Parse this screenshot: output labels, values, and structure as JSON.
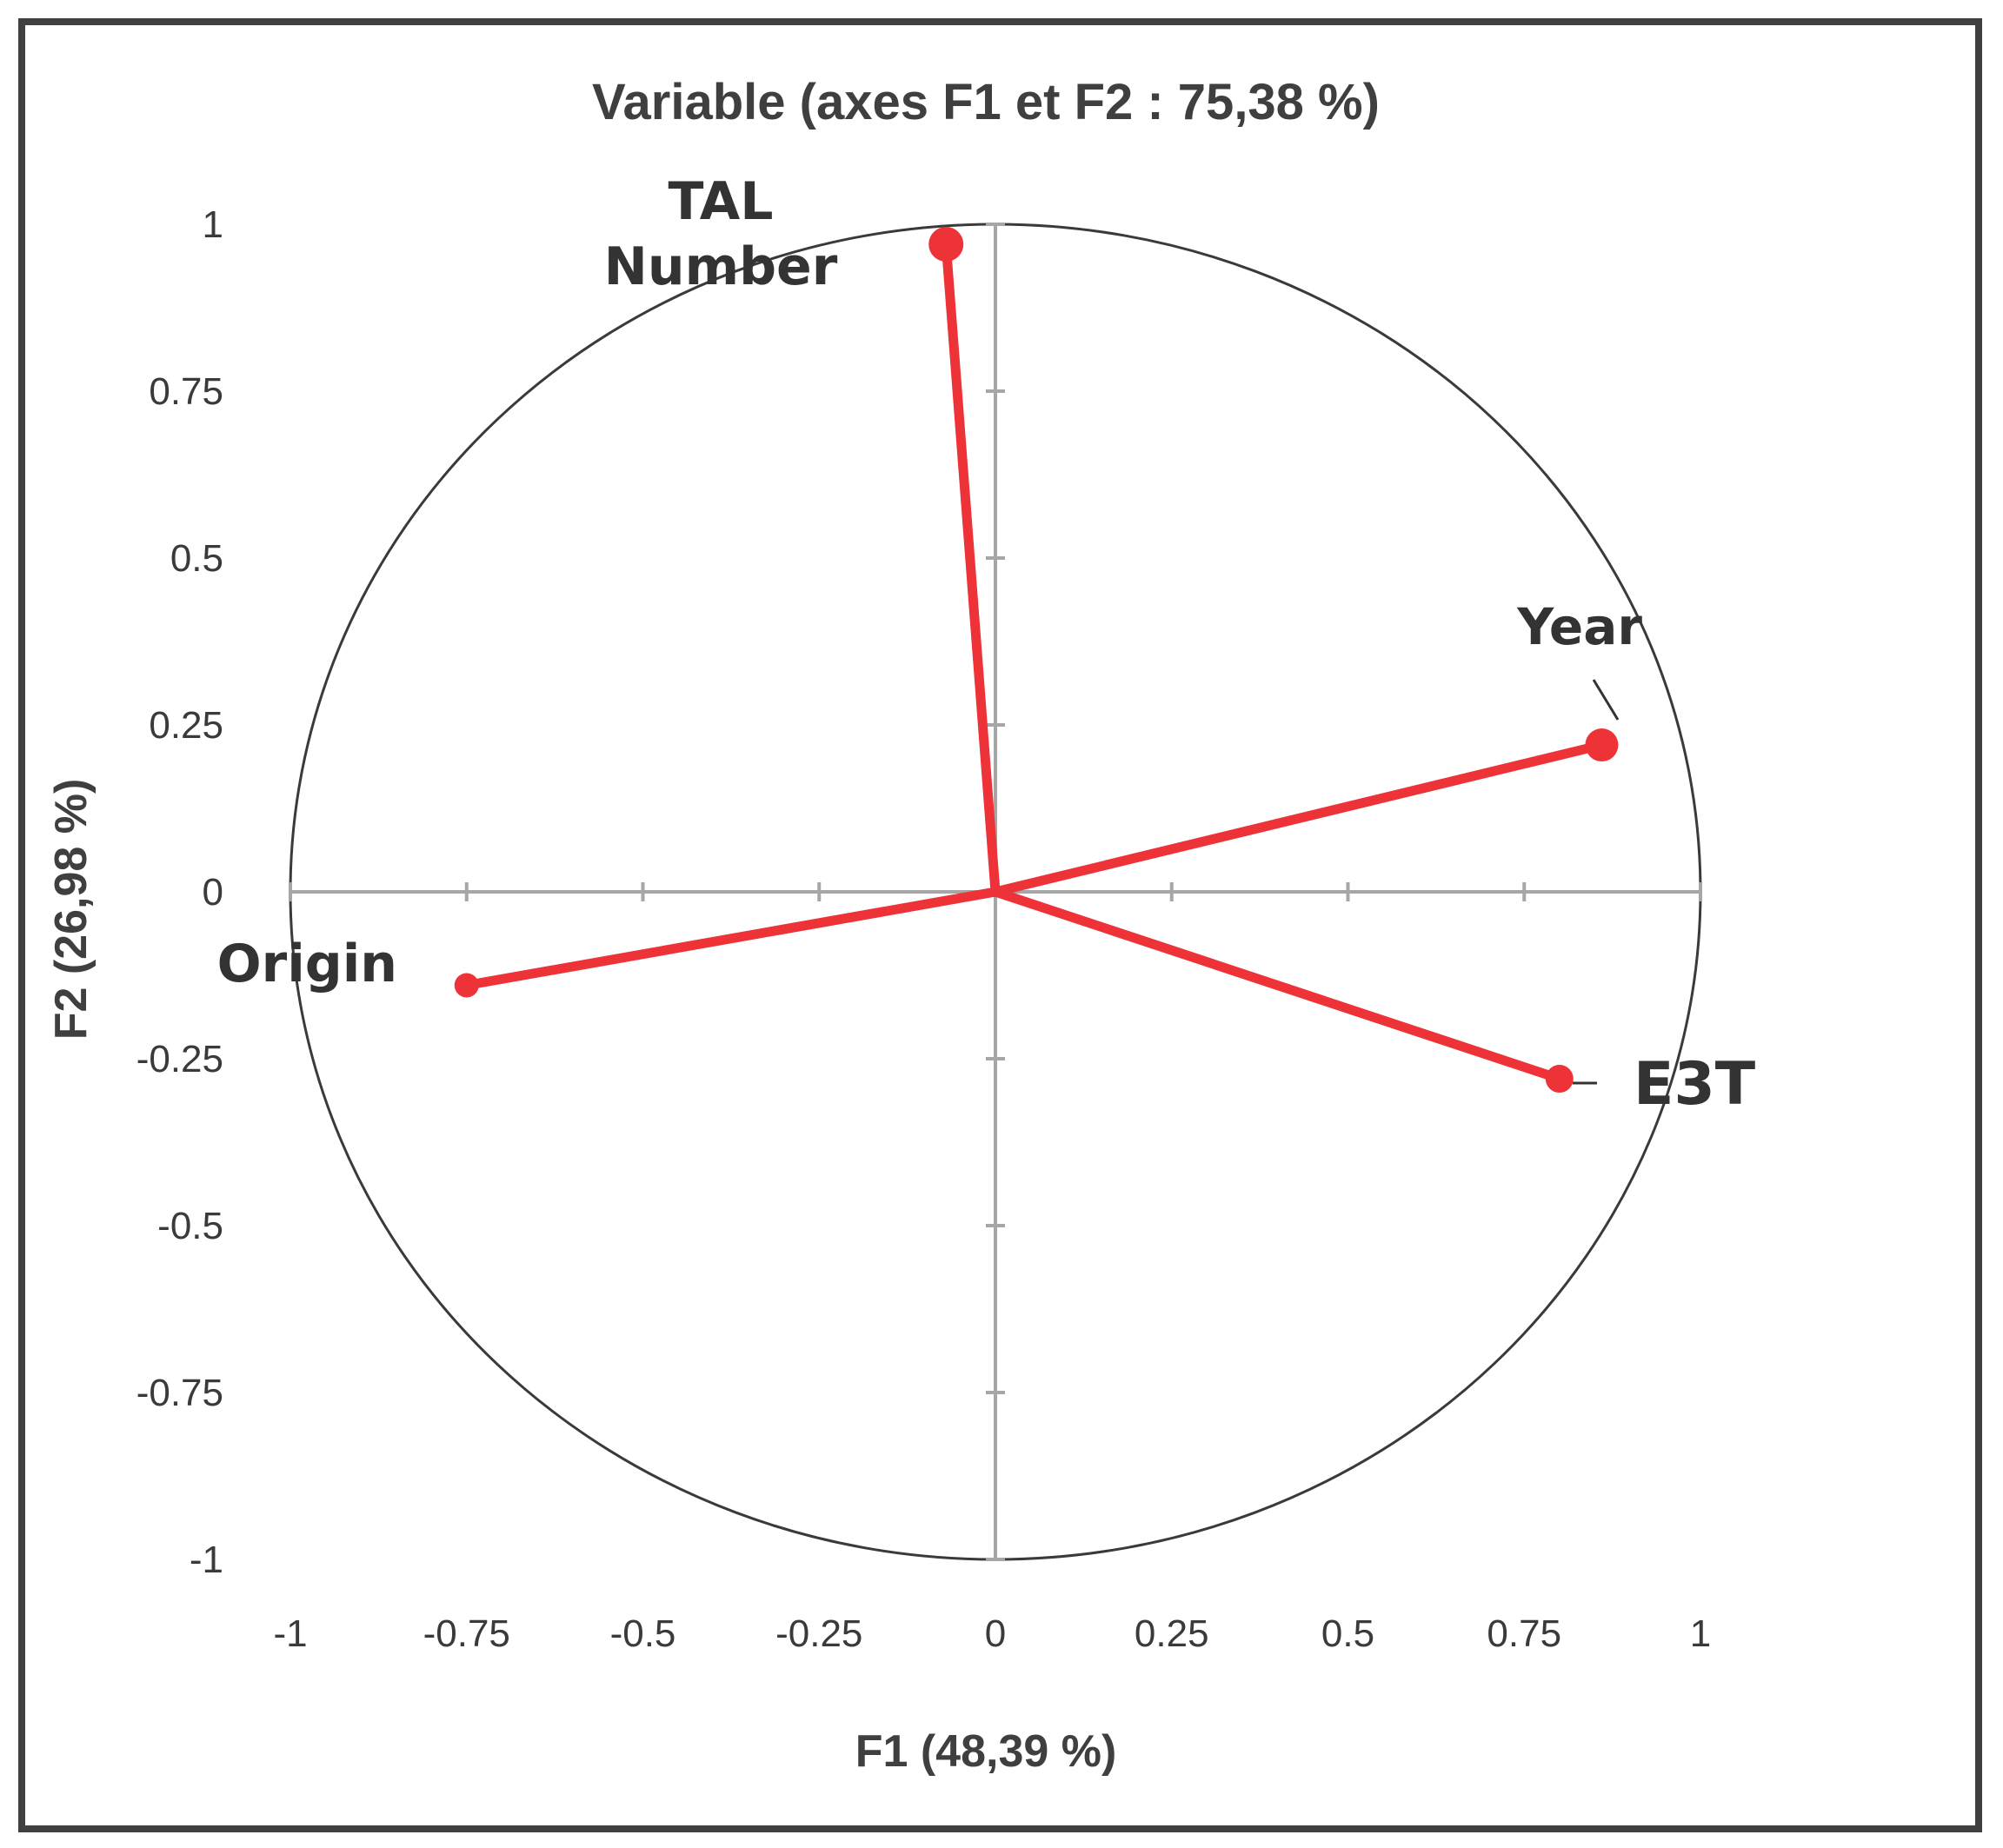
{
  "chart_data": {
    "type": "scatter",
    "title": "Variable (axes F1 et F2 : 75,38 %)",
    "xlabel": "F1 (48,39 %)",
    "ylabel": "F2 (26,98 %)",
    "xlim": [
      -1,
      1
    ],
    "ylim": [
      -1,
      1
    ],
    "x_ticks": [
      "-1",
      "-0.75",
      "-0.5",
      "-0.25",
      "0",
      "0.25",
      "0.5",
      "0.75",
      "1"
    ],
    "y_ticks": [
      "1",
      "0.75",
      "0.5",
      "0.25",
      "0",
      "-0.25",
      "-0.5",
      "-0.75",
      "-1"
    ],
    "correlation_circle": true,
    "grid": false,
    "colors": {
      "vector": "#ee3338",
      "circle": "#3a3a3a",
      "axis": "#a6a6a6",
      "frame": "#404040"
    },
    "points": [
      {
        "name": "TAL\nNumber",
        "x": -0.07,
        "y": 0.97
      },
      {
        "name": "Year",
        "x": 0.86,
        "y": 0.22
      },
      {
        "name": "Origin",
        "x": -0.75,
        "y": -0.14
      },
      {
        "name": "E3T",
        "x": 0.8,
        "y": -0.28
      }
    ]
  }
}
